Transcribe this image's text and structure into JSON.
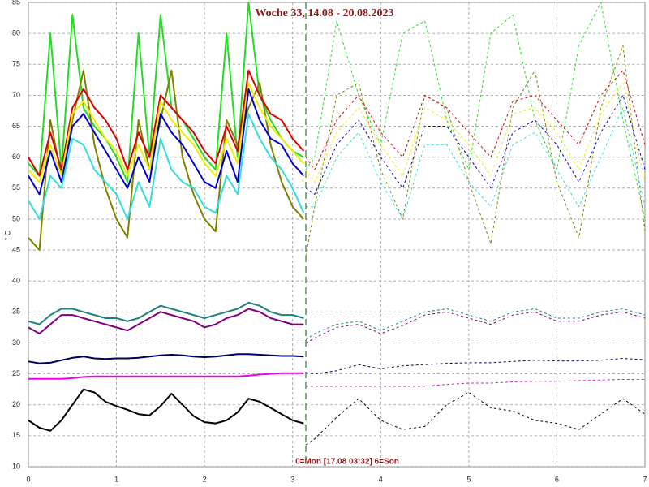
{
  "chart_data": {
    "type": "line",
    "title": "Woche 33, 14.08 - 20.08.2023",
    "annotation": "0=Mon [17.08 03:32] 6=Son",
    "ylabel": "° C",
    "xlim": [
      0,
      7
    ],
    "xticks": [
      0,
      1,
      2,
      3,
      4,
      5,
      6,
      7
    ],
    "ylim": [
      10,
      85
    ],
    "yticks": [
      10,
      15,
      20,
      25,
      30,
      35,
      40,
      45,
      50,
      55,
      60,
      65,
      70,
      75,
      80,
      85
    ],
    "grid": true,
    "marker_x": 3.15,
    "marker_color": "#2a7a2a",
    "series": [
      {
        "color": "#22dd22",
        "dashed": false,
        "x": [
          0,
          0.125,
          0.25,
          0.375,
          0.5,
          0.625,
          0.75,
          0.875,
          1,
          1.125,
          1.25,
          1.375,
          1.5,
          1.625,
          1.75,
          1.875,
          2,
          2.125,
          2.25,
          2.375,
          2.5,
          2.625,
          2.75,
          2.875,
          3,
          3.125
        ],
        "values": [
          59,
          57,
          80,
          58,
          83,
          68,
          65,
          63,
          60,
          56,
          80,
          60,
          83,
          68,
          66,
          63,
          60,
          58,
          80,
          60,
          85,
          70,
          66,
          63,
          61,
          60
        ]
      },
      {
        "color": "#808000",
        "dashed": false,
        "x": [
          0,
          0.125,
          0.25,
          0.375,
          0.5,
          0.625,
          0.75,
          0.875,
          1,
          1.125,
          1.25,
          1.375,
          1.5,
          1.625,
          1.75,
          1.875,
          2,
          2.125,
          2.25,
          2.375,
          2.5,
          2.625,
          2.75,
          2.875,
          3,
          3.125
        ],
        "values": [
          47,
          45,
          66,
          57,
          66,
          74,
          62,
          55,
          50,
          47,
          66,
          58,
          66,
          74,
          60,
          54,
          50,
          48,
          66,
          62,
          68,
          72,
          62,
          56,
          52,
          50
        ]
      },
      {
        "color": "#dd0000",
        "dashed": false,
        "x": [
          0,
          0.125,
          0.25,
          0.375,
          0.5,
          0.625,
          0.75,
          0.875,
          1,
          1.125,
          1.25,
          1.375,
          1.5,
          1.625,
          1.75,
          1.875,
          2,
          2.125,
          2.25,
          2.375,
          2.5,
          2.625,
          2.75,
          2.875,
          3,
          3.125
        ],
        "values": [
          60,
          57,
          64,
          58,
          68,
          71,
          68,
          66,
          63,
          58,
          64,
          60,
          70,
          68,
          66,
          64,
          61,
          59,
          65,
          61,
          74,
          70,
          67,
          66,
          63,
          61
        ]
      },
      {
        "color": "#eeee00",
        "dashed": false,
        "x": [
          0,
          0.125,
          0.25,
          0.375,
          0.5,
          0.625,
          0.75,
          0.875,
          1,
          1.125,
          1.25,
          1.375,
          1.5,
          1.625,
          1.75,
          1.875,
          2,
          2.125,
          2.25,
          2.375,
          2.5,
          2.625,
          2.75,
          2.875,
          3,
          3.125
        ],
        "values": [
          58,
          56,
          62,
          57,
          67,
          69,
          66,
          63,
          61,
          57,
          62,
          58,
          69,
          66,
          64,
          62,
          59,
          57,
          63,
          59,
          72,
          68,
          65,
          63,
          61,
          59
        ]
      },
      {
        "color": "#0000cc",
        "dashed": false,
        "x": [
          0,
          0.125,
          0.25,
          0.375,
          0.5,
          0.625,
          0.75,
          0.875,
          1,
          1.125,
          1.25,
          1.375,
          1.5,
          1.625,
          1.75,
          1.875,
          2,
          2.125,
          2.25,
          2.375,
          2.5,
          2.625,
          2.75,
          2.875,
          3,
          3.125
        ],
        "values": [
          57,
          54,
          61,
          56,
          65,
          67,
          64,
          61,
          58,
          55,
          60,
          56,
          67,
          64,
          62,
          59,
          56,
          55,
          61,
          56,
          71,
          66,
          63,
          62,
          59,
          57
        ]
      },
      {
        "color": "#33dddd",
        "dashed": false,
        "x": [
          0,
          0.125,
          0.25,
          0.375,
          0.5,
          0.625,
          0.75,
          0.875,
          1,
          1.125,
          1.25,
          1.375,
          1.5,
          1.625,
          1.75,
          1.875,
          2,
          2.125,
          2.25,
          2.375,
          2.5,
          2.625,
          2.75,
          2.875,
          3,
          3.125
        ],
        "values": [
          53,
          50,
          57,
          55,
          63,
          62,
          58,
          56,
          54,
          50,
          56,
          52,
          63,
          58,
          56,
          55,
          52,
          51,
          57,
          54,
          67,
          63,
          60,
          58,
          55,
          51
        ]
      },
      {
        "color": "#208080",
        "dashed": false,
        "x": [
          0,
          0.125,
          0.25,
          0.375,
          0.5,
          0.625,
          0.75,
          0.875,
          1,
          1.125,
          1.25,
          1.375,
          1.5,
          1.625,
          1.75,
          1.875,
          2,
          2.125,
          2.25,
          2.375,
          2.5,
          2.625,
          2.75,
          2.875,
          3,
          3.125
        ],
        "values": [
          33.5,
          33,
          34.5,
          35.5,
          35.5,
          35,
          34.5,
          34,
          34,
          33.5,
          34,
          35,
          36,
          35.5,
          35,
          34.5,
          34,
          34.5,
          35,
          35.5,
          36.5,
          36,
          35,
          34.5,
          34.5,
          34
        ]
      },
      {
        "color": "#800080",
        "dashed": false,
        "x": [
          0,
          0.125,
          0.25,
          0.375,
          0.5,
          0.625,
          0.75,
          0.875,
          1,
          1.125,
          1.25,
          1.375,
          1.5,
          1.625,
          1.75,
          1.875,
          2,
          2.125,
          2.25,
          2.375,
          2.5,
          2.625,
          2.75,
          2.875,
          3,
          3.125
        ],
        "values": [
          32.5,
          31.5,
          33,
          34.5,
          34.5,
          34,
          33.5,
          33,
          32.5,
          32,
          33,
          34,
          35,
          34.5,
          34,
          33.5,
          32.5,
          33,
          34,
          34.5,
          35.5,
          35,
          34,
          33.5,
          33,
          33
        ]
      },
      {
        "color": "#000060",
        "dashed": false,
        "x": [
          0,
          0.125,
          0.25,
          0.375,
          0.5,
          0.625,
          0.75,
          0.875,
          1,
          1.125,
          1.25,
          1.375,
          1.5,
          1.625,
          1.75,
          1.875,
          2,
          2.125,
          2.25,
          2.375,
          2.5,
          2.625,
          2.75,
          2.875,
          3,
          3.125
        ],
        "values": [
          27,
          26.7,
          26.8,
          27.2,
          27.6,
          27.8,
          27.5,
          27.4,
          27.5,
          27.5,
          27.6,
          27.8,
          28,
          28.1,
          28,
          27.8,
          27.7,
          27.8,
          28,
          28.2,
          28.2,
          28.1,
          28,
          27.9,
          27.9,
          27.8
        ]
      },
      {
        "color": "#ee00ee",
        "dashed": false,
        "x": [
          0,
          0.125,
          0.25,
          0.375,
          0.5,
          0.625,
          0.75,
          0.875,
          1,
          1.125,
          1.25,
          1.375,
          1.5,
          1.625,
          1.75,
          1.875,
          2,
          2.125,
          2.25,
          2.375,
          2.5,
          2.625,
          2.75,
          2.875,
          3,
          3.125
        ],
        "values": [
          24.2,
          24.2,
          24.2,
          24.2,
          24.3,
          24.5,
          24.6,
          24.6,
          24.6,
          24.6,
          24.6,
          24.6,
          24.6,
          24.6,
          24.6,
          24.6,
          24.6,
          24.6,
          24.6,
          24.6,
          24.7,
          24.9,
          25,
          25.1,
          25.1,
          25.1
        ]
      },
      {
        "color": "#000000",
        "dashed": false,
        "x": [
          0,
          0.125,
          0.25,
          0.375,
          0.5,
          0.625,
          0.75,
          0.875,
          1,
          1.125,
          1.25,
          1.375,
          1.5,
          1.625,
          1.75,
          1.875,
          2,
          2.125,
          2.25,
          2.375,
          2.5,
          2.625,
          2.75,
          2.875,
          3,
          3.125
        ],
        "values": [
          17.5,
          16.3,
          15.8,
          17.5,
          20,
          22.5,
          22,
          20.5,
          19.8,
          19.2,
          18.5,
          18.3,
          19.8,
          21.8,
          20,
          18.2,
          17.2,
          17,
          17.5,
          18.8,
          21,
          20.5,
          19.5,
          18.5,
          17.5,
          17
        ]
      },
      {
        "color": "#22dd22",
        "dashed": true,
        "x": [
          3.15,
          3.25,
          3.5,
          3.75,
          4,
          4.25,
          4.5,
          4.75,
          5,
          5.25,
          5.5,
          5.75,
          6,
          6.25,
          6.5,
          6.75,
          7
        ],
        "values": [
          58,
          60,
          82,
          70,
          62,
          80,
          82,
          66,
          58,
          80,
          83,
          66,
          58,
          78,
          85,
          66,
          50
        ]
      },
      {
        "color": "#808000",
        "dashed": true,
        "x": [
          3.15,
          3.25,
          3.5,
          3.75,
          4,
          4.25,
          4.5,
          4.75,
          5,
          5.25,
          5.5,
          5.75,
          6,
          6.25,
          6.5,
          6.75,
          7
        ],
        "values": [
          44,
          52,
          70,
          72,
          58,
          50,
          70,
          68,
          56,
          46,
          68,
          74,
          56,
          47,
          68,
          78,
          48
        ]
      },
      {
        "color": "#dd0000",
        "dashed": true,
        "x": [
          3.15,
          3.25,
          3.5,
          3.75,
          4,
          4.25,
          4.5,
          4.75,
          5,
          5.25,
          5.5,
          5.75,
          6,
          6.25,
          6.5,
          6.75,
          7
        ],
        "values": [
          60,
          58,
          66,
          70,
          64,
          60,
          70,
          68,
          64,
          60,
          69,
          70,
          66,
          62,
          70,
          74,
          62
        ]
      },
      {
        "color": "#eeee00",
        "dashed": true,
        "x": [
          3.15,
          3.25,
          3.5,
          3.75,
          4,
          4.25,
          4.5,
          4.75,
          5,
          5.25,
          5.5,
          5.75,
          6,
          6.25,
          6.5,
          6.75,
          7
        ],
        "values": [
          58,
          56,
          64,
          68,
          62,
          57,
          68,
          66,
          62,
          57,
          67,
          68,
          64,
          58,
          67,
          72,
          56
        ]
      },
      {
        "color": "#0000cc",
        "dashed": true,
        "x": [
          3.15,
          3.25,
          3.5,
          3.75,
          4,
          4.25,
          4.5,
          4.75,
          5,
          5.25,
          5.5,
          5.75,
          6,
          6.25,
          6.5,
          6.75,
          7
        ],
        "values": [
          55,
          54,
          62,
          66,
          60,
          55,
          65,
          65,
          60,
          55,
          64,
          66,
          62,
          56,
          64,
          70,
          58
        ]
      },
      {
        "color": "#33dddd",
        "dashed": true,
        "x": [
          3.15,
          3.25,
          3.5,
          3.75,
          4,
          4.25,
          4.5,
          4.75,
          5,
          5.25,
          5.5,
          5.75,
          6,
          6.25,
          6.5,
          6.75,
          7
        ],
        "values": [
          52,
          52,
          60,
          64,
          56,
          50,
          62,
          62,
          56,
          52,
          62,
          64,
          58,
          52,
          60,
          68,
          52
        ]
      },
      {
        "color": "#208080",
        "dashed": true,
        "x": [
          3.15,
          3.25,
          3.5,
          3.75,
          4,
          4.25,
          4.5,
          4.75,
          5,
          5.25,
          5.5,
          5.75,
          6,
          6.25,
          6.5,
          6.75,
          7
        ],
        "values": [
          30.5,
          31.5,
          33,
          33.5,
          32,
          33.5,
          35,
          35.5,
          34.5,
          33.5,
          35,
          35.5,
          34,
          34,
          35,
          35.5,
          34.5
        ]
      },
      {
        "color": "#800080",
        "dashed": true,
        "x": [
          3.15,
          3.25,
          3.5,
          3.75,
          4,
          4.25,
          4.5,
          4.75,
          5,
          5.25,
          5.5,
          5.75,
          6,
          6.25,
          6.5,
          6.75,
          7
        ],
        "values": [
          30,
          30.8,
          32.5,
          33,
          31.5,
          32.8,
          34.5,
          35,
          34,
          33,
          34.5,
          35,
          33.5,
          33.5,
          34.5,
          35,
          34
        ]
      },
      {
        "color": "#000060",
        "dashed": true,
        "x": [
          3.15,
          3.25,
          3.5,
          3.75,
          4,
          4.25,
          4.5,
          4.75,
          5,
          5.25,
          5.5,
          5.75,
          6,
          6.25,
          6.5,
          6.75,
          7
        ],
        "values": [
          25.2,
          25,
          25.5,
          26.5,
          25.8,
          26.3,
          26.5,
          26.7,
          26.8,
          26.8,
          27,
          27.2,
          27.1,
          27.1,
          27.2,
          27.5,
          27.3
        ]
      },
      {
        "color": "#ee00ee",
        "dashed": true,
        "x": [
          3.15,
          3.25,
          3.5,
          3.75,
          4,
          4.25,
          4.5,
          4.75,
          5,
          5.25,
          5.5,
          5.75,
          6,
          6.25,
          6.5,
          6.75,
          7
        ],
        "values": [
          23,
          23,
          23,
          23,
          23,
          23,
          23,
          23.3,
          23.5,
          23.5,
          23.7,
          23.8,
          23.8,
          23.9,
          24,
          24.1,
          24.1
        ]
      },
      {
        "color": "#000000",
        "dashed": true,
        "x": [
          3.15,
          3.25,
          3.5,
          3.75,
          4,
          4.25,
          4.5,
          4.75,
          5,
          5.25,
          5.5,
          5.75,
          6,
          6.25,
          6.5,
          6.75,
          7
        ],
        "values": [
          13.5,
          14.5,
          18,
          21,
          17.5,
          16,
          16.5,
          20,
          22,
          19.5,
          19,
          17.5,
          17,
          16,
          18.5,
          21,
          18.5
        ]
      }
    ]
  }
}
